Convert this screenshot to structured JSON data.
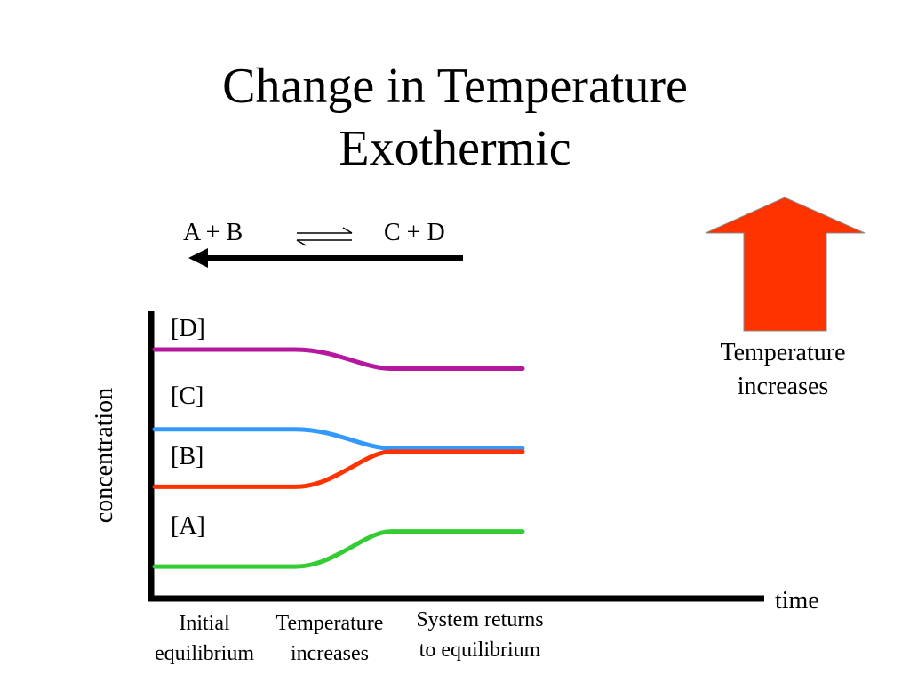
{
  "title": {
    "line1": "Change in Temperature",
    "line2": "Exothermic"
  },
  "reaction": {
    "reactants": "A + B",
    "products": "C + D",
    "shift_direction": "left"
  },
  "stimulus": {
    "label_line1": "Temperature",
    "label_line2": "increases",
    "arrow_color": "#ff3300",
    "arrow_direction": "up"
  },
  "chart_data": {
    "type": "line",
    "xlabel": "time",
    "ylabel": "concentration",
    "phases": [
      {
        "line1": "Initial",
        "line2": "equilibrium"
      },
      {
        "line1": "Temperature",
        "line2": "increases"
      },
      {
        "line1": "System returns",
        "line2": "to equilibrium"
      }
    ],
    "series": [
      {
        "name": "[D]",
        "color": "#b5179e",
        "initial": 0.78,
        "final": 0.72
      },
      {
        "name": "[C]",
        "color": "#3399ff",
        "initial": 0.53,
        "final": 0.47
      },
      {
        "name": "[B]",
        "color": "#ff3300",
        "initial": 0.35,
        "final": 0.46
      },
      {
        "name": "[A]",
        "color": "#33cc33",
        "initial": 0.1,
        "final": 0.21
      }
    ],
    "legend": "inline-left",
    "grid": false
  }
}
